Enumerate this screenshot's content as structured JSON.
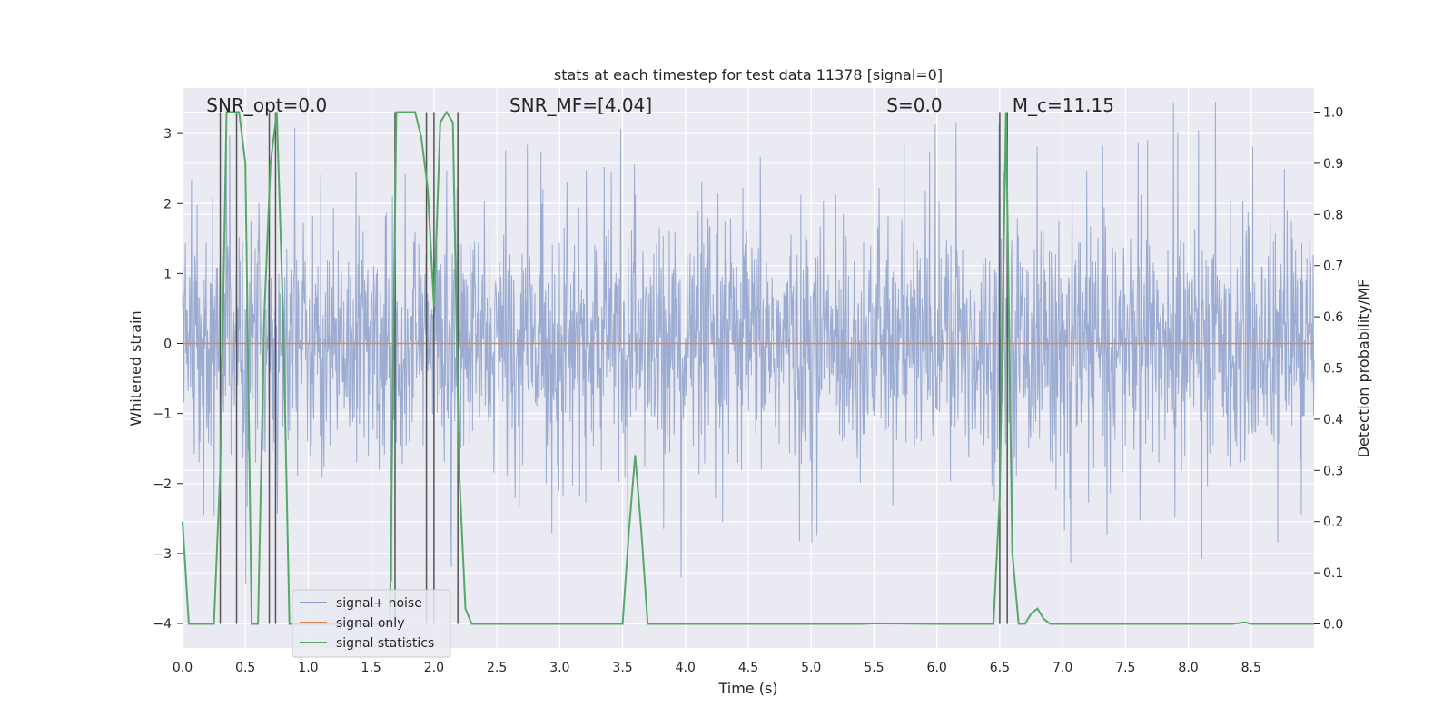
{
  "chart_data": {
    "type": "line",
    "title": "stats at each timestep for test data 11378 [signal=0]",
    "xlabel": "Time (s)",
    "ylabel": "Whitened strain",
    "y2label": "Detection probability/MF",
    "xlim": [
      0.0,
      9.0
    ],
    "ylim": [
      -4.35,
      3.65
    ],
    "y2lim": [
      -0.047,
      1.047
    ],
    "xticks": [
      0.0,
      0.5,
      1.0,
      1.5,
      2.0,
      2.5,
      3.0,
      3.5,
      4.0,
      4.5,
      5.0,
      5.5,
      6.0,
      6.5,
      7.0,
      7.5,
      8.0,
      8.5
    ],
    "xtick_labels": [
      "0.0",
      "0.5",
      "1.0",
      "1.5",
      "2.0",
      "2.5",
      "3.0",
      "3.5",
      "4.0",
      "4.5",
      "5.0",
      "5.5",
      "6.0",
      "6.5",
      "7.0",
      "7.5",
      "8.0",
      "8.5"
    ],
    "yticks": [
      -4,
      -3,
      -2,
      -1,
      0,
      1,
      2,
      3
    ],
    "ytick_labels": [
      "−4",
      "−3",
      "−2",
      "−1",
      "0",
      "1",
      "2",
      "3"
    ],
    "y2ticks": [
      0.0,
      0.1,
      0.2,
      0.3,
      0.4,
      0.5,
      0.6,
      0.7,
      0.8,
      0.9,
      1.0
    ],
    "y2tick_labels": [
      "0.0",
      "0.1",
      "0.2",
      "0.3",
      "0.4",
      "0.5",
      "0.6",
      "0.7",
      "0.8",
      "0.9",
      "1.0"
    ],
    "annotations": [
      {
        "name": "snr-opt",
        "text": "SNR_opt=0.0",
        "x": 0.19
      },
      {
        "name": "snr-mf",
        "text": "SNR_MF=[4.04]",
        "x": 2.6
      },
      {
        "name": "s-stat",
        "text": "S=0.0",
        "x": 5.6
      },
      {
        "name": "chirp-mass",
        "text": "M_c=11.15",
        "x": 6.6
      }
    ],
    "series": [
      {
        "name": "signal+ noise",
        "type": "noise",
        "amplitude_typical": 1.2,
        "amplitude_peak": 3.5
      },
      {
        "name": "signal only",
        "type": "line",
        "x": [
          0.0,
          9.0
        ],
        "y": [
          0.0,
          0.0
        ]
      },
      {
        "name": "signal statistics",
        "axis": "y2",
        "x": [
          0.0,
          0.05,
          0.25,
          0.3,
          0.35,
          0.4,
          0.45,
          0.5,
          0.55,
          0.6,
          0.65,
          0.7,
          0.75,
          0.8,
          0.85,
          1.65,
          1.7,
          1.75,
          1.8,
          1.85,
          1.9,
          1.95,
          2.0,
          2.05,
          2.1,
          2.15,
          2.2,
          2.25,
          2.3,
          3.5,
          3.55,
          3.6,
          3.65,
          3.7,
          5.4,
          5.5,
          6.0,
          6.45,
          6.5,
          6.55,
          6.6,
          6.65,
          6.7,
          6.75,
          6.8,
          6.85,
          6.9,
          7.0,
          8.35,
          8.45,
          8.5,
          9.0
        ],
        "y": [
          0.2,
          0.0,
          0.0,
          0.3,
          1.0,
          1.0,
          1.0,
          0.9,
          0.0,
          0.0,
          0.6,
          0.9,
          1.0,
          0.6,
          0.0,
          0.0,
          1.0,
          1.0,
          1.0,
          1.0,
          0.95,
          0.85,
          0.62,
          0.98,
          1.0,
          0.98,
          0.3,
          0.03,
          0.0,
          0.0,
          0.18,
          0.33,
          0.18,
          0.0,
          0.0,
          0.001,
          0.0,
          0.0,
          0.25,
          1.0,
          0.14,
          0.0,
          0.0,
          0.02,
          0.03,
          0.01,
          0.0,
          0.0,
          0.0,
          0.003,
          0.0,
          0.0
        ]
      }
    ],
    "vlines": [
      0.3,
      0.43,
      0.69,
      0.74,
      1.69,
      1.94,
      2.0,
      2.19,
      6.5,
      6.56
    ],
    "legend": {
      "location": "lower-left",
      "entries": [
        {
          "label": "signal+ noise",
          "color": "#8da0cb"
        },
        {
          "label": "signal only",
          "color": "#dd8452"
        },
        {
          "label": "signal statistics",
          "color": "#55a868"
        }
      ]
    },
    "colors": {
      "background": "#eaeaf2",
      "grid": "#ffffff",
      "noise": "#8da0cb",
      "signal": "#dd8452",
      "stat": "#55a868",
      "vline": "#555555"
    }
  }
}
